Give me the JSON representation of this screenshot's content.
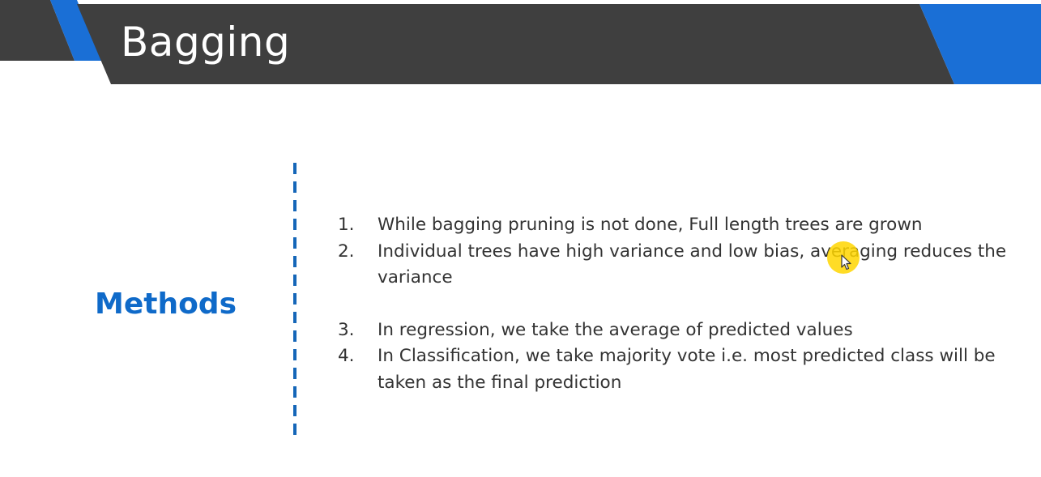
{
  "slide": {
    "title": "Bagging",
    "section_label": "Methods",
    "points": [
      {
        "number": "1.",
        "text": "While bagging pruning is not done, Full length trees are grown"
      },
      {
        "number": "2.",
        "text": "Individual trees have high variance and low bias, averaging reduces the variance"
      },
      {
        "number": "3.",
        "text": "In regression, we take the average of predicted values"
      },
      {
        "number": "4.",
        "text": "In Classification, we take majority vote i.e. most predicted class  will be taken as the final prediction"
      }
    ]
  },
  "colors": {
    "header_band": "#3f3f3f",
    "accent_blue": "#0f6ac9",
    "divider": "#1566b8",
    "body_text": "#333333",
    "cursor_highlight": "#ffd600"
  },
  "icons": {
    "cursor": "mouse-pointer-icon"
  }
}
